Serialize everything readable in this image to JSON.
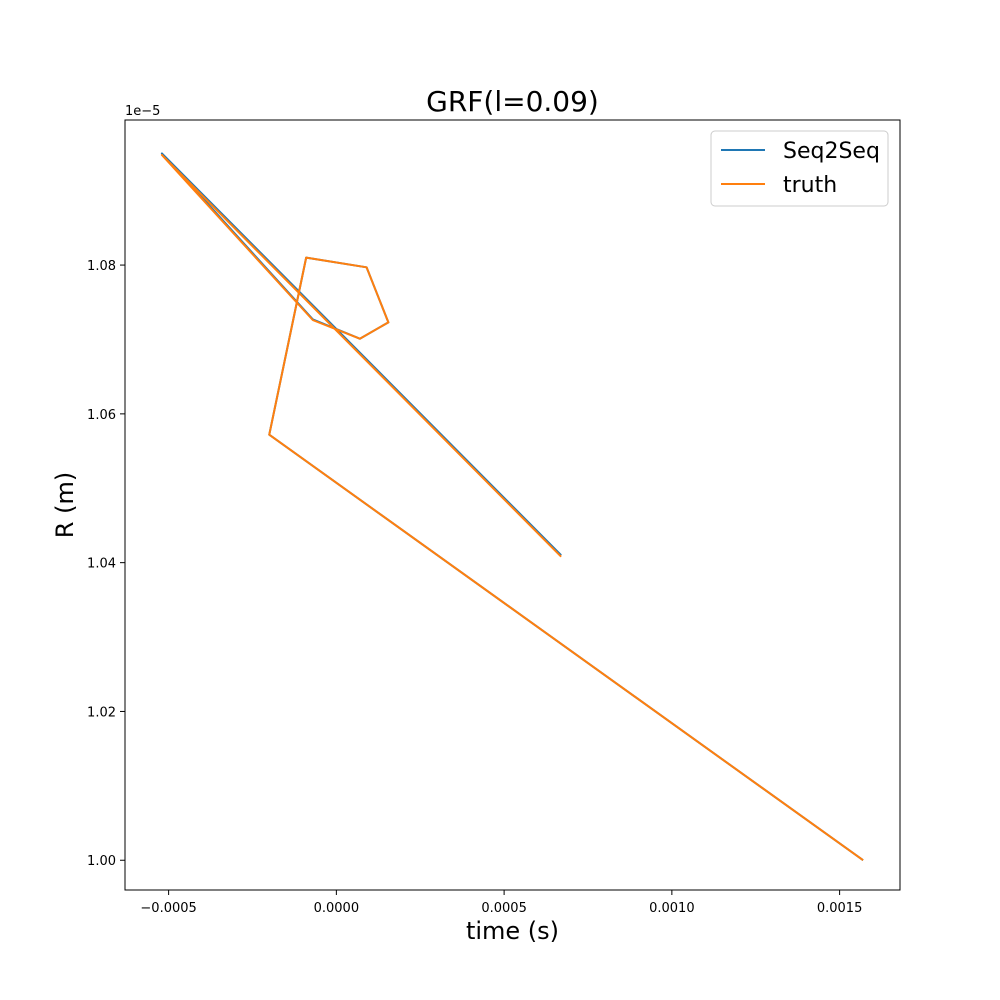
{
  "chart_data": {
    "type": "line",
    "title": "GRF(l=0.09)",
    "xlabel": "time (s)",
    "ylabel": "R (m)",
    "y_offset_label": "1e−5",
    "xlim": [
      -0.00063,
      0.00168
    ],
    "ylim": [
      0.996,
      1.0995
    ],
    "x_ticks": [
      -0.0005,
      0.0,
      0.0005,
      0.001,
      0.0015
    ],
    "x_tick_labels": [
      "−0.0005",
      "0.0000",
      "0.0005",
      "0.0010",
      "0.0015"
    ],
    "y_ticks": [
      1.0,
      1.02,
      1.04,
      1.06,
      1.08
    ],
    "y_tick_labels": [
      "1.00",
      "1.02",
      "1.04",
      "1.06",
      "1.08"
    ],
    "grid": false,
    "legend_position": "top-right",
    "series": [
      {
        "name": "Seq2Seq",
        "color": "#1f77b4",
        "x": [
          0.00157,
          -0.0002,
          -9e-05,
          9e-05,
          0.000155,
          7e-05,
          -7e-05,
          -0.00052,
          0.00067
        ],
        "y": [
          1.0,
          1.0572,
          1.081,
          1.0797,
          1.0723,
          1.0701,
          1.0727,
          1.095,
          1.041
        ]
      },
      {
        "name": "truth",
        "color": "#ff7f0e",
        "x": [
          0.00157,
          -0.0002,
          -9e-05,
          9e-05,
          0.000155,
          7e-05,
          -7e-05,
          -0.00052,
          0.00067
        ],
        "y": [
          1.0,
          1.0572,
          1.081,
          1.0797,
          1.0723,
          1.0701,
          1.0726,
          1.0948,
          1.0408
        ]
      }
    ]
  }
}
